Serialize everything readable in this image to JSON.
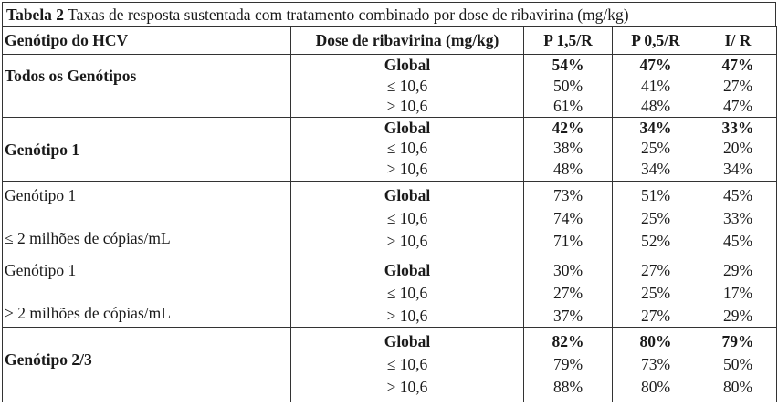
{
  "caption": {
    "label": "Tabela 2",
    "text": " Taxas de resposta sustentada com tratamento combinado por dose de ribavirina (mg/kg)"
  },
  "headers": [
    "Genótipo do HCV",
    "Dose de ribavirina (mg/kg)",
    "P 1,5/R",
    "P 0,5/R",
    "I/ R"
  ],
  "groups": [
    {
      "genotype_lines": [
        "Todos os Genótipos"
      ],
      "genotype_bold": true,
      "doses": [
        "Global",
        "≤ 10,6",
        "> 10,6"
      ],
      "p15": [
        "54%",
        "50%",
        "61%"
      ],
      "p05": [
        "47%",
        "41%",
        "48%"
      ],
      "ir": [
        "47%",
        "27%",
        "47%"
      ]
    },
    {
      "genotype_lines": [
        "Genótipo 1"
      ],
      "genotype_bold": true,
      "doses": [
        "Global",
        "≤ 10,6",
        "> 10,6"
      ],
      "p15": [
        "42%",
        "38%",
        "48%"
      ],
      "p05": [
        "34%",
        "25%",
        "34%"
      ],
      "ir": [
        "33%",
        "20%",
        "34%"
      ]
    },
    {
      "genotype_lines": [
        "Genótipo 1",
        "≤ 2 milhões de cópias/mL"
      ],
      "genotype_bold": false,
      "doses": [
        "Global",
        "≤ 10,6",
        "> 10,6"
      ],
      "p15": [
        "73%",
        "74%",
        "71%"
      ],
      "p05": [
        "51%",
        "25%",
        "52%"
      ],
      "ir": [
        "45%",
        "33%",
        "45%"
      ]
    },
    {
      "genotype_lines": [
        "Genótipo 1",
        "> 2 milhões de cópias/mL"
      ],
      "genotype_bold": false,
      "doses": [
        "Global",
        "≤ 10,6",
        "> 10,6"
      ],
      "p15": [
        "30%",
        "27%",
        "37%"
      ],
      "p05": [
        "27%",
        "25%",
        "27%"
      ],
      "ir": [
        "29%",
        "17%",
        "29%"
      ]
    },
    {
      "genotype_lines": [
        "Genótipo 2/3"
      ],
      "genotype_bold": true,
      "doses": [
        "Global",
        "≤ 10,6",
        "> 10,6"
      ],
      "p15": [
        "82%",
        "79%",
        "88%"
      ],
      "p05": [
        "80%",
        "73%",
        "80%"
      ],
      "ir": [
        "79%",
        "50%",
        "80%"
      ]
    }
  ]
}
